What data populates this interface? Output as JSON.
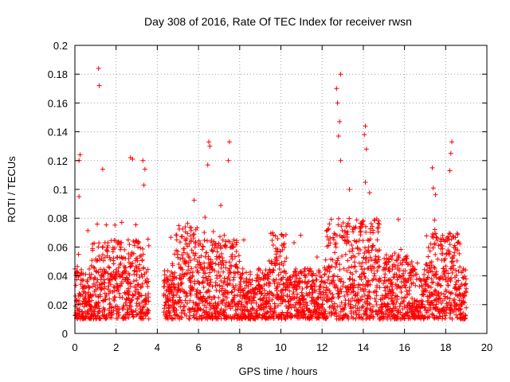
{
  "chart_data": {
    "type": "scatter",
    "title": "Day 308 of 2016, Rate Of TEC Index for receiver rwsn",
    "xlabel": "GPS time / hours",
    "ylabel": "ROTI / TECUs",
    "xlim": [
      0,
      20
    ],
    "ylim": [
      0,
      0.2
    ],
    "xticks": [
      0,
      2,
      4,
      6,
      8,
      10,
      12,
      14,
      16,
      18,
      20
    ],
    "xtick_labels": [
      "0",
      "2",
      "4",
      "6",
      "8",
      "10",
      "12",
      "14",
      "16",
      "18",
      "20"
    ],
    "yticks": [
      0,
      0.02,
      0.04,
      0.06,
      0.08,
      0.1,
      0.12,
      0.14,
      0.16,
      0.18,
      0.2
    ],
    "ytick_labels": [
      "0",
      "0.02",
      "0.04",
      "0.06",
      "0.08",
      "0.1",
      "0.12",
      "0.14",
      "0.16",
      "0.18",
      "0.2"
    ],
    "grid": true,
    "marker": "+",
    "color": "#ff0000",
    "series": [
      {
        "name": "ROTI",
        "dense_band": {
          "x_range": [
            0,
            19
          ],
          "gap_hours": [
            3.6,
            4.3
          ],
          "typical_range": [
            0.01,
            0.06
          ]
        },
        "notable_points": [
          {
            "x": 0.25,
            "y": 0.124
          },
          {
            "x": 0.2,
            "y": 0.12
          },
          {
            "x": 0.2,
            "y": 0.095
          },
          {
            "x": 1.15,
            "y": 0.184
          },
          {
            "x": 1.18,
            "y": 0.172
          },
          {
            "x": 1.35,
            "y": 0.114
          },
          {
            "x": 2.7,
            "y": 0.122
          },
          {
            "x": 2.8,
            "y": 0.121
          },
          {
            "x": 3.3,
            "y": 0.12
          },
          {
            "x": 3.4,
            "y": 0.114
          },
          {
            "x": 3.35,
            "y": 0.103
          },
          {
            "x": 6.5,
            "y": 0.133
          },
          {
            "x": 6.55,
            "y": 0.13
          },
          {
            "x": 6.45,
            "y": 0.117
          },
          {
            "x": 7.5,
            "y": 0.133
          },
          {
            "x": 7.45,
            "y": 0.12
          },
          {
            "x": 12.9,
            "y": 0.18
          },
          {
            "x": 12.7,
            "y": 0.17
          },
          {
            "x": 12.75,
            "y": 0.16
          },
          {
            "x": 12.85,
            "y": 0.147
          },
          {
            "x": 12.8,
            "y": 0.137
          },
          {
            "x": 12.9,
            "y": 0.12
          },
          {
            "x": 14.1,
            "y": 0.144
          },
          {
            "x": 14.05,
            "y": 0.138
          },
          {
            "x": 14.15,
            "y": 0.128
          },
          {
            "x": 14.1,
            "y": 0.105
          },
          {
            "x": 17.35,
            "y": 0.115
          },
          {
            "x": 17.4,
            "y": 0.101
          },
          {
            "x": 18.3,
            "y": 0.133
          },
          {
            "x": 18.25,
            "y": 0.125
          },
          {
            "x": 18.2,
            "y": 0.113
          }
        ]
      }
    ]
  }
}
